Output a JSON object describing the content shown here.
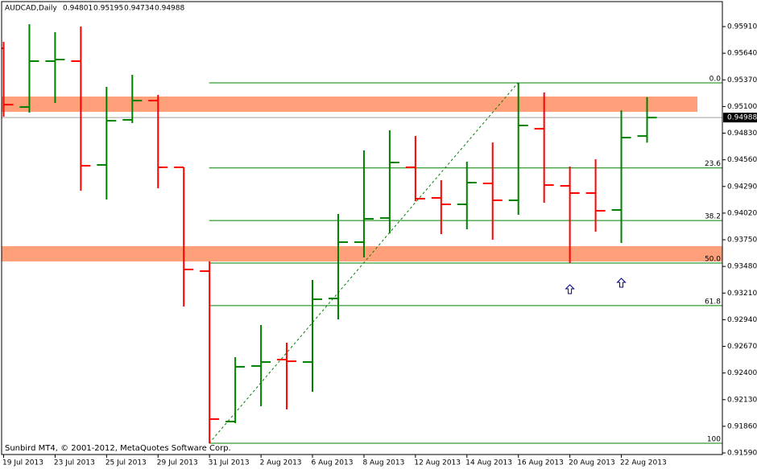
{
  "chart_data": {
    "type": "ohlc",
    "title": "AUDCAD,Daily",
    "footer": "Sunbird MT4, © 2001-2012, MetaQuotes Software Corp.",
    "categories": [
      "19 Jul 2013",
      null,
      "23 Jul 2013",
      null,
      "25 Jul 2013",
      null,
      "29 Jul 2013",
      null,
      "31 Jul 2013",
      null,
      "2 Aug 2013",
      null,
      "6 Aug 2013",
      null,
      "8 Aug 2013",
      null,
      "12 Aug 2013",
      null,
      "14 Aug 2013",
      null,
      "16 Aug 2013",
      null,
      "20 Aug 2013",
      null,
      "22 Aug 2013",
      null
    ],
    "open": [
      0.9569,
      0.95095,
      0.9556,
      0.9556,
      0.94508,
      0.94965,
      0.9516,
      0.94484,
      0.93432,
      0.91908,
      0.92471,
      0.92536,
      0.92511,
      0.93155,
      0.93726,
      0.9397,
      0.94484,
      0.94174,
      0.94109,
      0.94321,
      0.9415,
      0.94875,
      0.94296,
      0.94223,
      0.94052,
      0.94801
    ],
    "high": [
      0.95755,
      0.95934,
      0.95853,
      0.9591,
      0.95299,
      0.95421,
      0.95217,
      0.94484,
      0.9353,
      0.9256,
      0.92886,
      0.92707,
      0.93343,
      0.94011,
      0.94655,
      0.94859,
      0.94802,
      0.94353,
      0.94541,
      0.94736,
      0.9534,
      0.95242,
      0.94492,
      0.94565,
      0.95062,
      0.95195
    ],
    "low": [
      0.94997,
      0.95038,
      0.95136,
      0.94247,
      0.94158,
      0.94932,
      0.94272,
      0.93074,
      0.91688,
      0.91892,
      0.92063,
      0.92031,
      0.9221,
      0.92943,
      0.93571,
      0.93815,
      0.94141,
      0.93807,
      0.93856,
      0.9375,
      0.94003,
      0.94125,
      0.93514,
      0.93832,
      0.93718,
      0.94734
    ],
    "close": [
      0.95119,
      0.9556,
      0.95576,
      0.945,
      0.94956,
      0.9516,
      0.94484,
      0.93449,
      0.91933,
      0.92463,
      0.92511,
      0.92519,
      0.93147,
      0.93726,
      0.93962,
      0.94533,
      0.94166,
      0.94109,
      0.94329,
      0.9415,
      0.94908,
      0.94304,
      0.94223,
      0.94044,
      0.94785,
      0.94988
    ],
    "up_color": "#008000",
    "down_color": "#ff0000",
    "ylim": [
      0.91574,
      0.96163
    ],
    "yticks": [
      {
        "value": 0.9591,
        "label": "0.95910"
      },
      {
        "value": 0.9564,
        "label": "0.95640"
      },
      {
        "value": 0.9537,
        "label": "0.95370"
      },
      {
        "value": 0.951,
        "label": "0.95100"
      },
      {
        "value": 0.9483,
        "label": "0.94830"
      },
      {
        "value": 0.9456,
        "label": "0.94560"
      },
      {
        "value": 0.9429,
        "label": "0.94290"
      },
      {
        "value": 0.9402,
        "label": "0.94020"
      },
      {
        "value": 0.9375,
        "label": "0.93750"
      },
      {
        "value": 0.9348,
        "label": "0.93480"
      },
      {
        "value": 0.9321,
        "label": "0.93210"
      },
      {
        "value": 0.9294,
        "label": "0.92940"
      },
      {
        "value": 0.9267,
        "label": "0.92670"
      },
      {
        "value": 0.924,
        "label": "0.92400"
      },
      {
        "value": 0.9213,
        "label": "0.92130"
      },
      {
        "value": 0.9186,
        "label": "0.91860"
      },
      {
        "value": 0.9159,
        "label": "0.91590"
      }
    ],
    "zones": [
      {
        "from": 0.95046,
        "to": 0.95201,
        "color": "#ffa07a"
      },
      {
        "from": 0.9353,
        "to": 0.93685,
        "color": "#ffa07a"
      }
    ],
    "fib": {
      "low_bar": 8,
      "high_bar": 20,
      "color": "#008000",
      "levels": [
        {
          "value": 0,
          "label": "0.0"
        },
        23.6,
        38.2,
        {
          "value": 50,
          "label": "50.0"
        },
        61.8,
        100
      ]
    },
    "arrows": [
      {
        "bar": 22,
        "value": 0.93245
      },
      {
        "bar": 24,
        "value": 0.9331
      }
    ],
    "arrow_color": "#000080",
    "price_line_color": "#a0a0a0"
  }
}
